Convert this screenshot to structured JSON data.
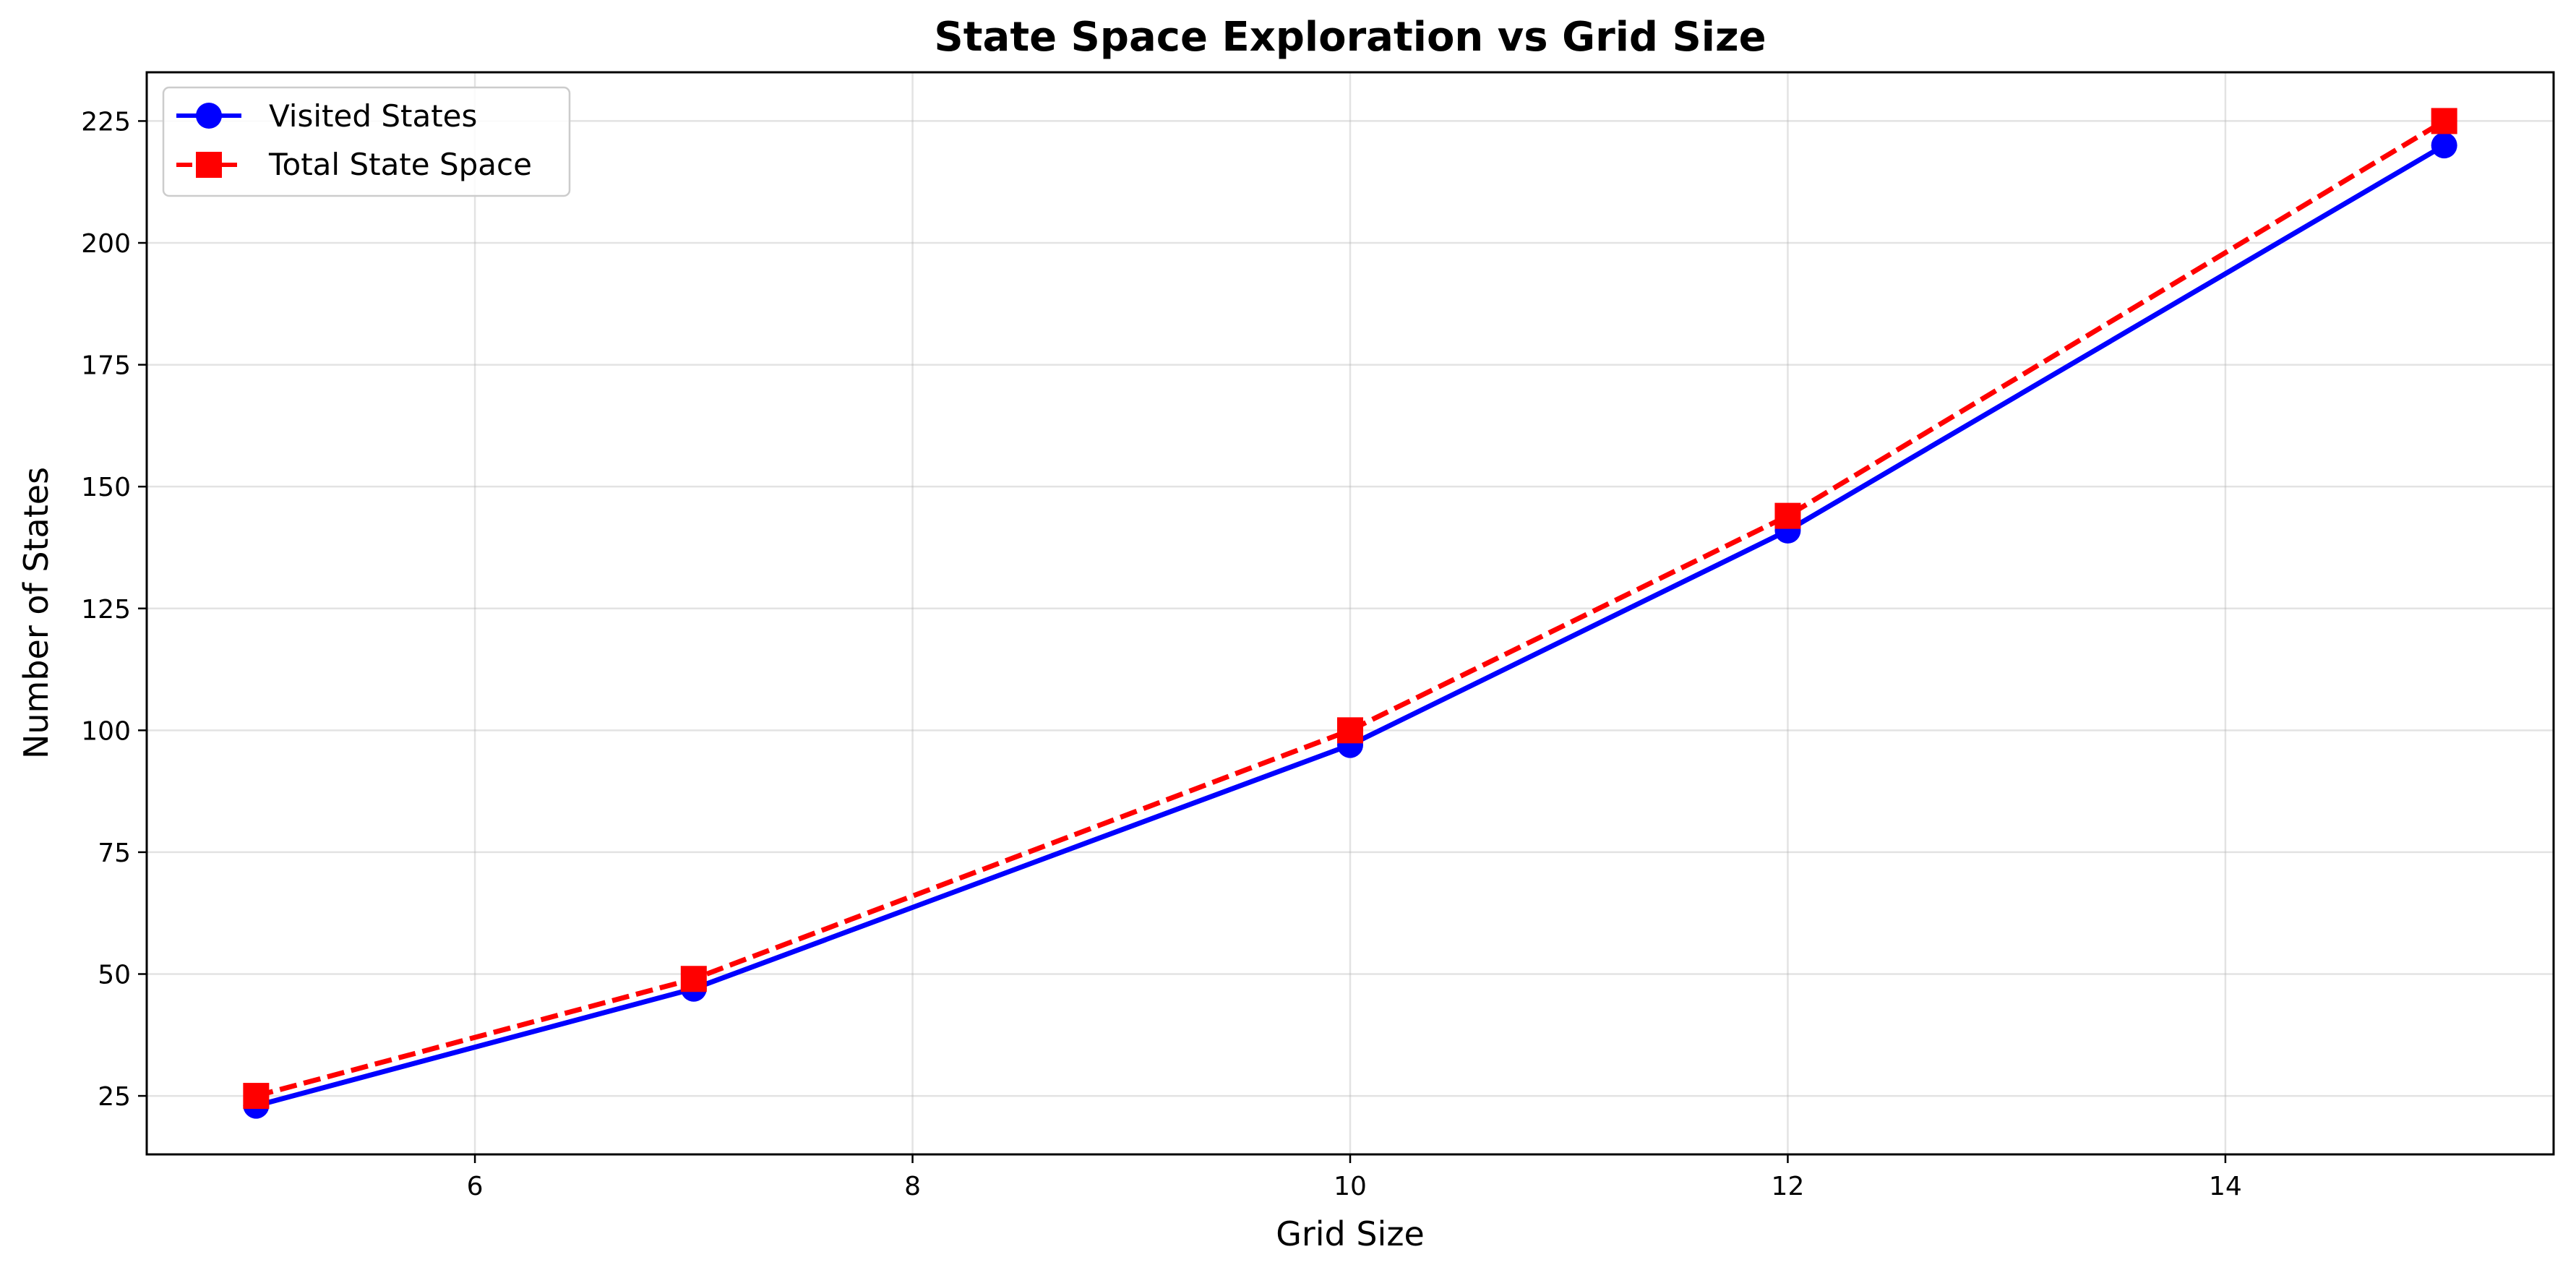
{
  "chart_data": {
    "type": "line",
    "title": "State Space Exploration vs Grid Size",
    "xlabel": "Grid Size",
    "ylabel": "Number of States",
    "x": [
      5,
      7,
      10,
      12,
      15
    ],
    "xlim": [
      4.5,
      15.5
    ],
    "ylim": [
      13,
      235
    ],
    "x_ticks": [
      6,
      8,
      10,
      12,
      14
    ],
    "y_ticks": [
      25,
      50,
      75,
      100,
      125,
      150,
      175,
      200,
      225
    ],
    "grid": true,
    "legend_position": "top-left",
    "series": [
      {
        "name": "Visited States",
        "values": [
          23,
          47,
          97,
          141,
          220
        ],
        "color": "#0000ff",
        "line_style": "solid",
        "marker": "circle"
      },
      {
        "name": "Total State Space",
        "values": [
          25,
          49,
          100,
          144,
          225
        ],
        "color": "#ff0000",
        "line_style": "dashed",
        "marker": "square"
      }
    ]
  }
}
